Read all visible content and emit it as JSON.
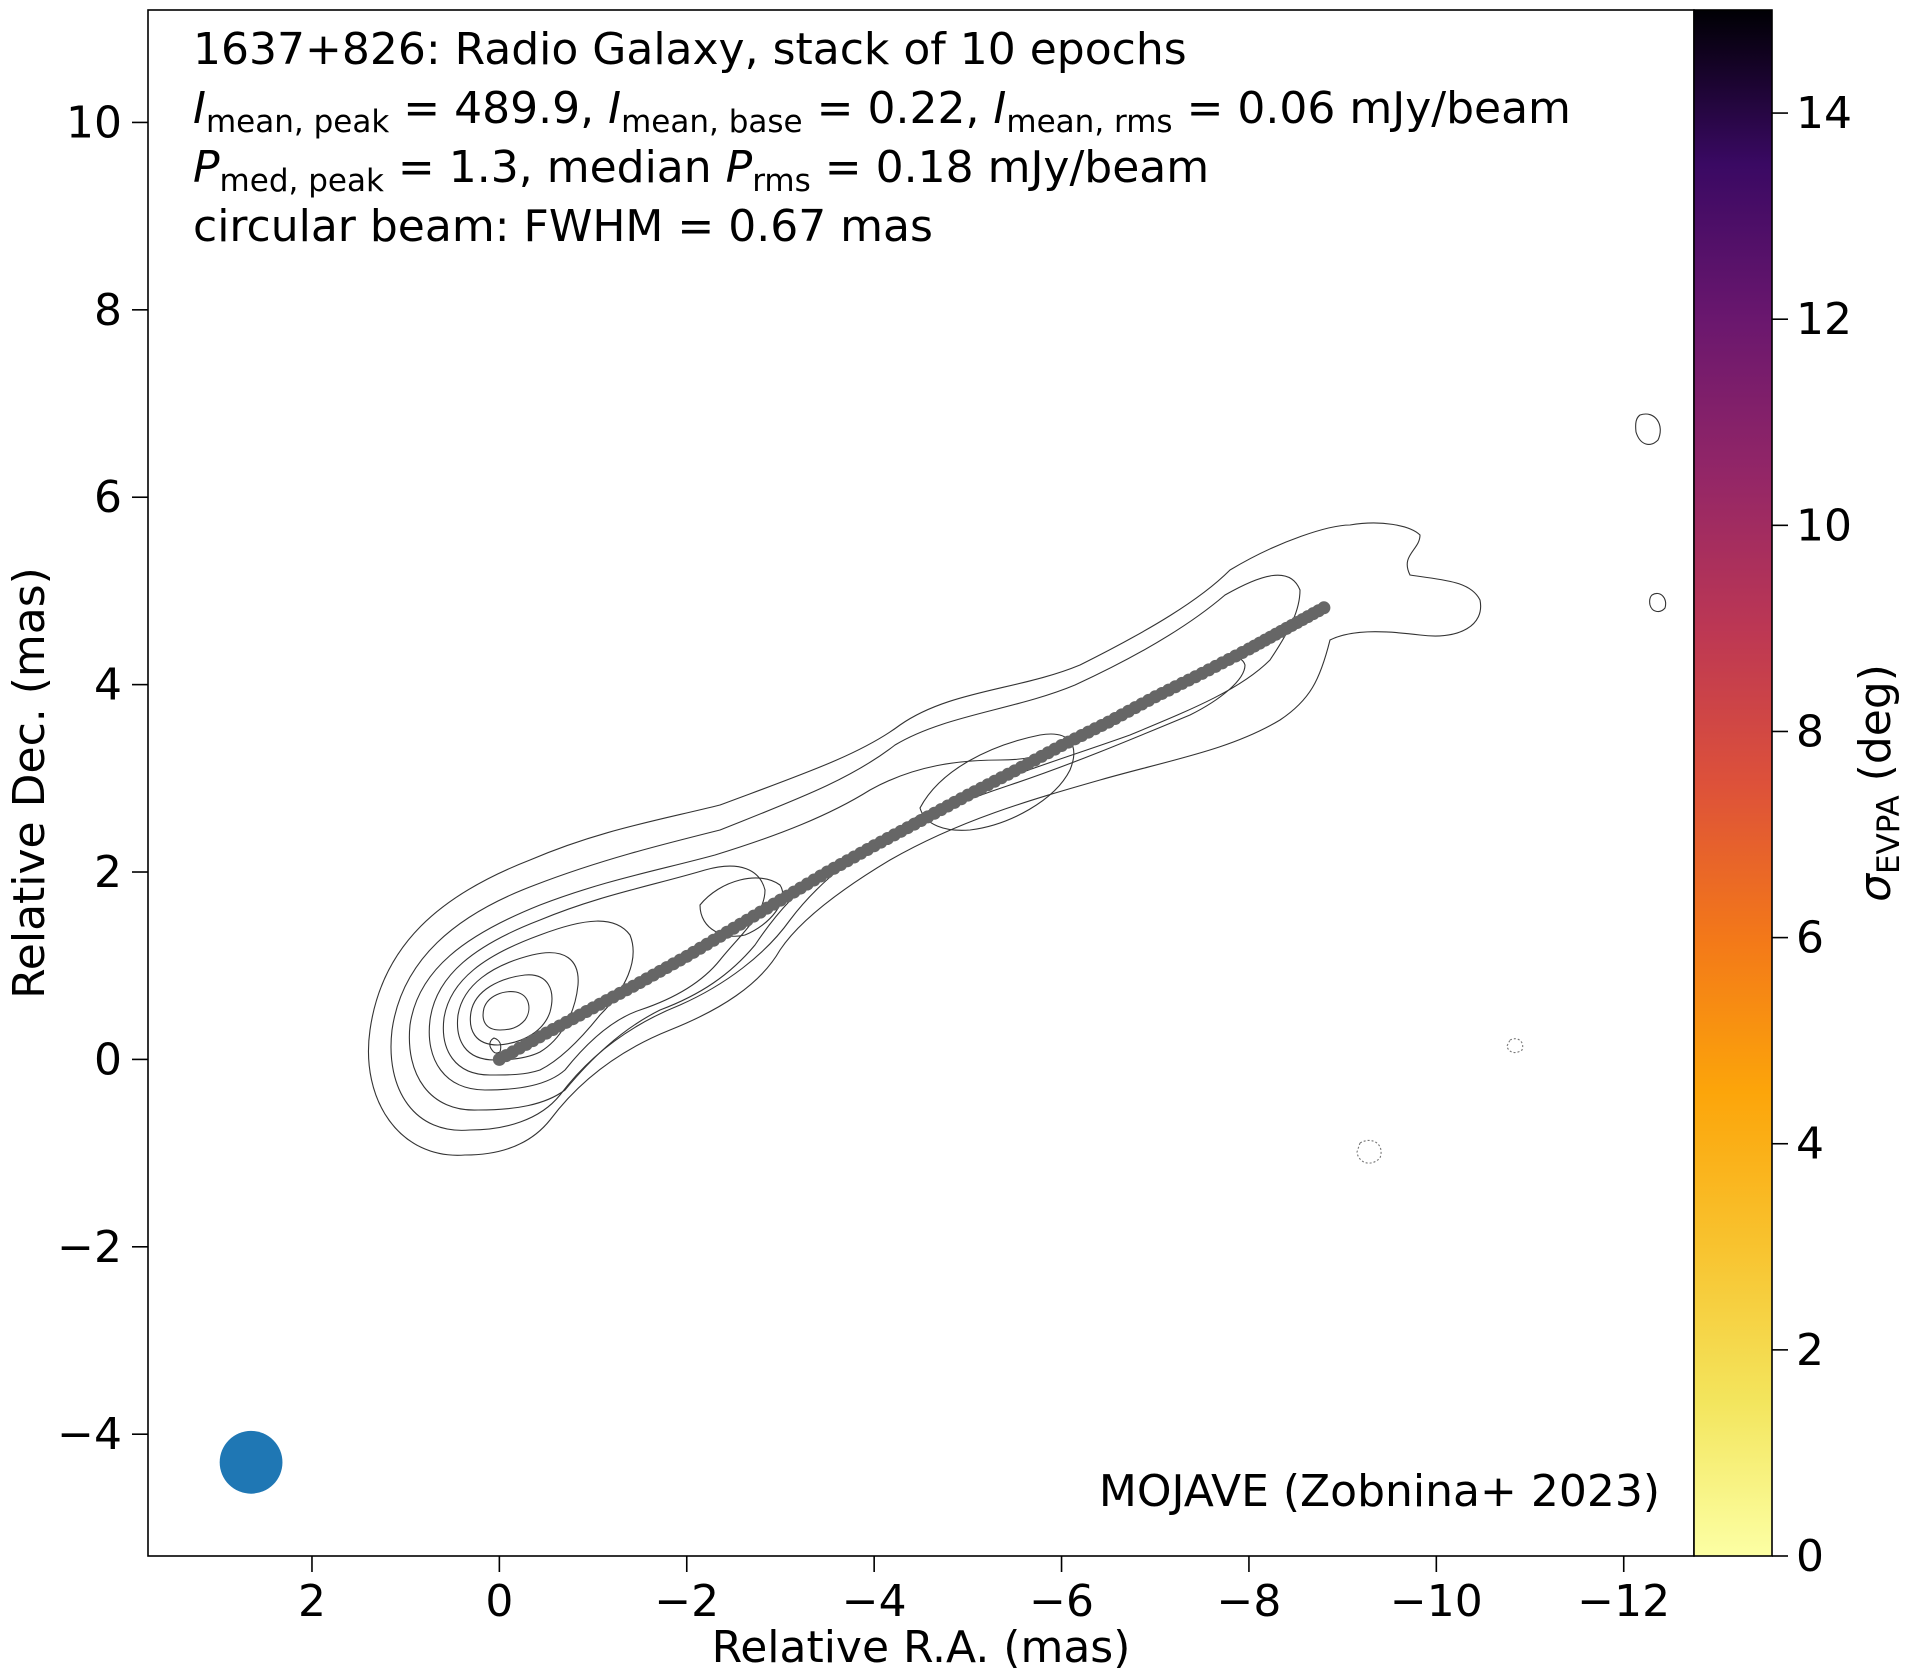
{
  "chart_data": {
    "type": "scatter",
    "title": "1637+826: Radio Galaxy, stack of 10 epochs",
    "annotations": {
      "line2": {
        "v1": "489.9",
        "v2": "0.22",
        "v3": "0.06",
        "unit": "mJy/beam"
      },
      "line3": {
        "v1": "1.3",
        "v2": "0.18",
        "unit": "mJy/beam",
        "median_word": "median"
      },
      "line4": "circular beam: FWHM = 0.67 mas",
      "credit": "MOJAVE (Zobnina+ 2023)"
    },
    "xlabel": "Relative R.A. (mas)",
    "ylabel": "Relative Dec. (mas)",
    "xlim": [
      3.75,
      -12.75
    ],
    "ylim": [
      -5.3,
      11.2
    ],
    "xticks": [
      2,
      0,
      -2,
      -4,
      -6,
      -8,
      -10,
      -12
    ],
    "yticks": [
      -4,
      -2,
      0,
      2,
      4,
      6,
      8,
      10
    ],
    "colorbar": {
      "label": "σ_EVPA (deg)",
      "range": [
        0,
        15
      ],
      "ticks": [
        0,
        2,
        4,
        6,
        8,
        10,
        12,
        14
      ],
      "colormap": "inferno_r"
    },
    "ridgeline": {
      "color": "#666666",
      "points": [
        [
          0,
          0
        ],
        [
          -0.5,
          0.28
        ],
        [
          -1.0,
          0.55
        ],
        [
          -1.5,
          0.82
        ],
        [
          -2.0,
          1.1
        ],
        [
          -2.5,
          1.4
        ],
        [
          -3.0,
          1.7
        ],
        [
          -3.5,
          2.0
        ],
        [
          -4.0,
          2.28
        ],
        [
          -4.5,
          2.55
        ],
        [
          -5.0,
          2.82
        ],
        [
          -5.5,
          3.08
        ],
        [
          -6.0,
          3.35
        ],
        [
          -6.5,
          3.6
        ],
        [
          -7.0,
          3.87
        ],
        [
          -7.5,
          4.12
        ],
        [
          -8.0,
          4.38
        ],
        [
          -8.4,
          4.6
        ],
        [
          -8.8,
          4.82
        ]
      ]
    },
    "beam": {
      "ra": 2.65,
      "dec": -4.3,
      "fwhm_mas": 0.67,
      "color": "#1f77b4"
    }
  }
}
